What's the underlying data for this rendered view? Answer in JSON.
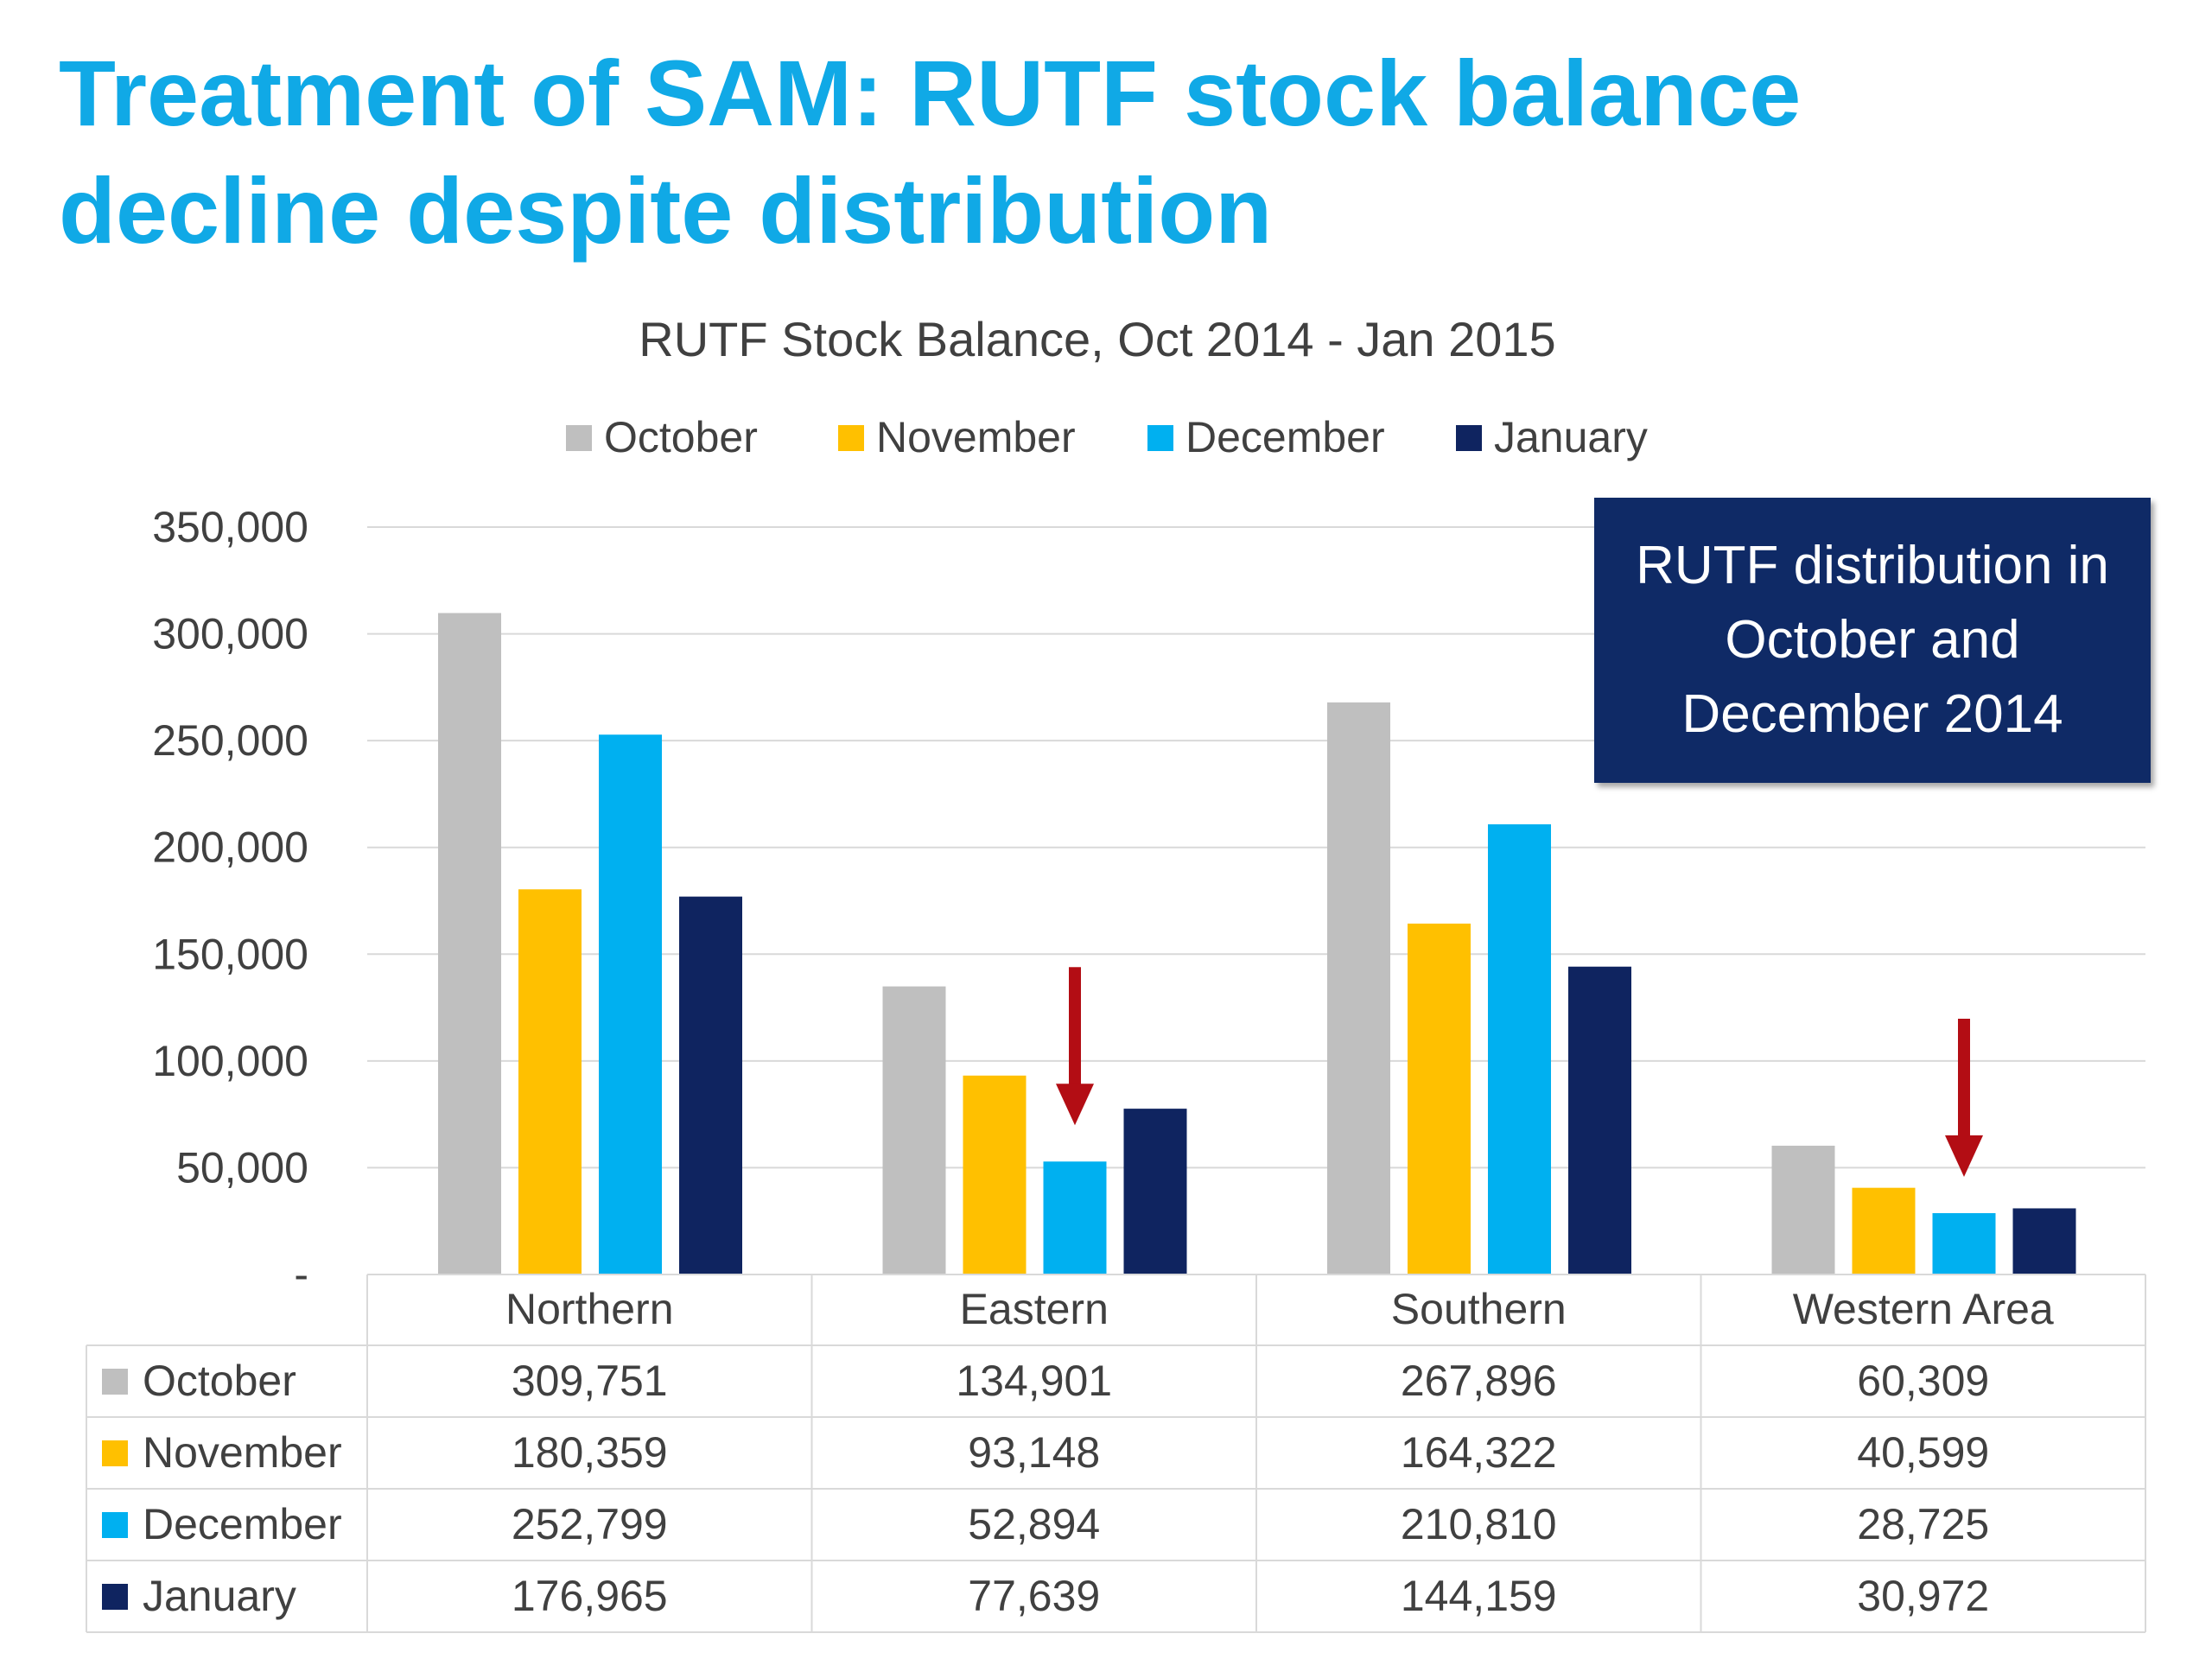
{
  "slide": {
    "title_line1": "Treatment of SAM: RUTF stock balance",
    "title_line2": "decline despite distribution",
    "callout_text": "RUTF distribution in October and December 2014"
  },
  "colors": {
    "title": "#10a9e6",
    "callout_bg": "#0f2a66",
    "arrow": "#b30d14",
    "grid": "#d9d9d9",
    "text": "#404040"
  },
  "chart_data": {
    "type": "bar",
    "title": "RUTF Stock Balance, Oct 2014 - Jan 2015",
    "xlabel": "",
    "ylabel": "",
    "categories": [
      "Northern",
      "Eastern",
      "Southern",
      "Western Area"
    ],
    "series": [
      {
        "name": "October",
        "color": "#bfbfbf",
        "values": [
          309751,
          134901,
          267896,
          60309
        ],
        "labels": [
          "309,751",
          "134,901",
          "267,896",
          "60,309"
        ]
      },
      {
        "name": "November",
        "color": "#ffc000",
        "values": [
          180359,
          93148,
          164322,
          40599
        ],
        "labels": [
          "180,359",
          "93,148",
          "164,322",
          "40,599"
        ]
      },
      {
        "name": "December",
        "color": "#00b0f0",
        "values": [
          252799,
          52894,
          210810,
          28725
        ],
        "labels": [
          "252,799",
          "52,894",
          "210,810",
          "28,725"
        ]
      },
      {
        "name": "January",
        "color": "#0f2460",
        "values": [
          176965,
          77639,
          144159,
          30972
        ],
        "labels": [
          "176,965",
          "77,639",
          "144,159",
          "30,972"
        ]
      }
    ],
    "ylim": [
      0,
      350000
    ],
    "yticks": [
      0,
      50000,
      100000,
      150000,
      200000,
      250000,
      300000,
      350000
    ],
    "ytick_labels": [
      "-",
      "50,000",
      "100,000",
      "150,000",
      "200,000",
      "250,000",
      "300,000",
      "350,000"
    ],
    "grid": true,
    "legend": "top",
    "data_table": true,
    "annotations": [
      {
        "type": "down-arrow",
        "category": "Eastern",
        "series": "December"
      },
      {
        "type": "down-arrow",
        "category": "Western Area",
        "series": "December"
      }
    ]
  }
}
